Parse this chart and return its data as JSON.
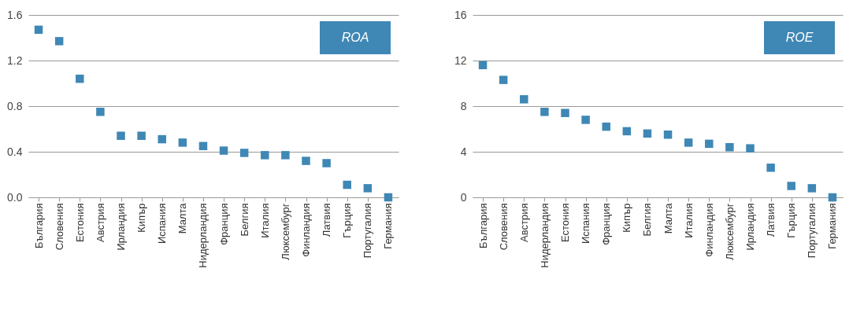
{
  "chart_data": [
    {
      "type": "scatter",
      "title": "ROA",
      "categories": [
        "България",
        "Словения",
        "Естония",
        "Австрия",
        "Ирландия",
        "Кипър",
        "Испания",
        "Малта",
        "Нидерландия",
        "Франция",
        "Белгия",
        "Италия",
        "Люксембург",
        "Финландия",
        "Латвия",
        "Гърция",
        "Португалия",
        "Германия"
      ],
      "series": [
        {
          "color": "#3f87b5",
          "values": [
            1.47,
            1.37,
            1.04,
            0.75,
            0.54,
            0.54,
            0.51,
            0.48,
            0.45,
            0.41,
            0.39,
            0.37,
            0.37,
            0.32,
            0.3,
            0.11,
            0.08,
            0.0
          ]
        }
      ],
      "ylim": [
        0,
        1.6
      ],
      "yticks": [
        {
          "value": 0,
          "label": "0.0"
        },
        0.4,
        0.8,
        1.2,
        1.6
      ],
      "grid": "y",
      "marker": "square"
    },
    {
      "type": "scatter",
      "title": "ROE",
      "categories": [
        "България",
        "Словения",
        "Австрия",
        "Нидерландия",
        "Естония",
        "Испания",
        "Франция",
        "Кипър",
        "Белгия",
        "Малта",
        "Италия",
        "Финландия",
        "Люксембург",
        "Ирландия",
        "Латвия",
        "Гърция",
        "Португалия",
        "Германия"
      ],
      "series": [
        {
          "color": "#3f87b5",
          "values": [
            11.6,
            10.3,
            8.6,
            7.5,
            7.4,
            6.8,
            6.2,
            5.8,
            5.6,
            5.5,
            4.8,
            4.7,
            4.4,
            4.3,
            2.6,
            1.0,
            0.8,
            0.0
          ]
        }
      ],
      "ylim": [
        0,
        16
      ],
      "yticks": [
        0,
        4,
        8,
        12,
        16
      ],
      "grid": "y",
      "marker": "square"
    }
  ]
}
